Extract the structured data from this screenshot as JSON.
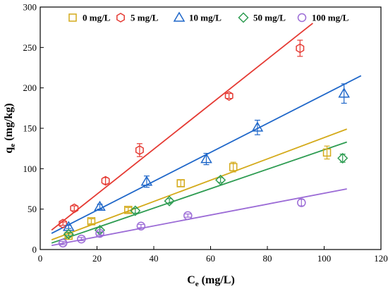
{
  "chart_data": {
    "type": "scatter",
    "xlabel": {
      "main": "C",
      "sub": "e",
      "rest": " (mg/L)"
    },
    "ylabel": {
      "main": "q",
      "sub": "e",
      "rest": " (mg/kg)"
    },
    "xlim": [
      0,
      120
    ],
    "ylim": [
      0,
      300
    ],
    "xticks": [
      0,
      20,
      40,
      60,
      80,
      100,
      120
    ],
    "yticks": [
      0,
      50,
      100,
      150,
      200,
      250,
      300
    ],
    "grid": false,
    "legend_position": "top",
    "series": [
      {
        "name": "0 mg/L",
        "marker": "square",
        "color": "#d4aa1a",
        "points": [
          [
            10,
            17
          ],
          [
            18,
            35
          ],
          [
            31,
            49
          ],
          [
            49.5,
            82
          ],
          [
            68,
            102
          ],
          [
            101,
            120
          ]
        ],
        "errors": [
          2,
          3,
          3,
          4,
          6,
          8
        ],
        "fit": {
          "x": [
            4,
            108
          ],
          "y": [
            12,
            149
          ]
        }
      },
      {
        "name": "5 mg/L",
        "marker": "hexagon",
        "color": "#e53a33",
        "points": [
          [
            8,
            32
          ],
          [
            12,
            51
          ],
          [
            23,
            85
          ],
          [
            35,
            123
          ],
          [
            66.5,
            190
          ],
          [
            91.5,
            249
          ]
        ],
        "errors": [
          2,
          3,
          4,
          8,
          3,
          10
        ],
        "fit": {
          "x": [
            4,
            96
          ],
          "y": [
            24,
            280
          ]
        }
      },
      {
        "name": "10 mg/L",
        "marker": "triangle",
        "color": "#1f67c9",
        "points": [
          [
            10,
            28
          ],
          [
            21,
            53
          ],
          [
            37.5,
            84
          ],
          [
            58.5,
            112
          ],
          [
            76.5,
            151
          ],
          [
            107,
            193
          ]
        ],
        "errors": [
          2,
          3,
          7,
          7,
          9,
          12
        ],
        "fit": {
          "x": [
            4,
            113
          ],
          "y": [
            20,
            215
          ]
        }
      },
      {
        "name": "50 mg/L",
        "marker": "diamond",
        "color": "#2e9c52",
        "points": [
          [
            10,
            19
          ],
          [
            21,
            24
          ],
          [
            33.5,
            48
          ],
          [
            45.5,
            60
          ],
          [
            63.5,
            86
          ],
          [
            106.5,
            113
          ]
        ],
        "errors": [
          2,
          3,
          3,
          3,
          3,
          5
        ],
        "fit": {
          "x": [
            4,
            108
          ],
          "y": [
            8,
            133
          ]
        }
      },
      {
        "name": "100 mg/L",
        "marker": "circle",
        "color": "#9b6bd6",
        "points": [
          [
            8,
            8
          ],
          [
            14.5,
            13
          ],
          [
            21,
            20
          ],
          [
            35.5,
            29
          ],
          [
            52,
            42
          ],
          [
            92,
            58
          ]
        ],
        "errors": [
          2,
          2,
          2,
          2,
          2,
          4
        ],
        "fit": {
          "x": [
            4,
            108
          ],
          "y": [
            5,
            75
          ]
        }
      }
    ]
  }
}
